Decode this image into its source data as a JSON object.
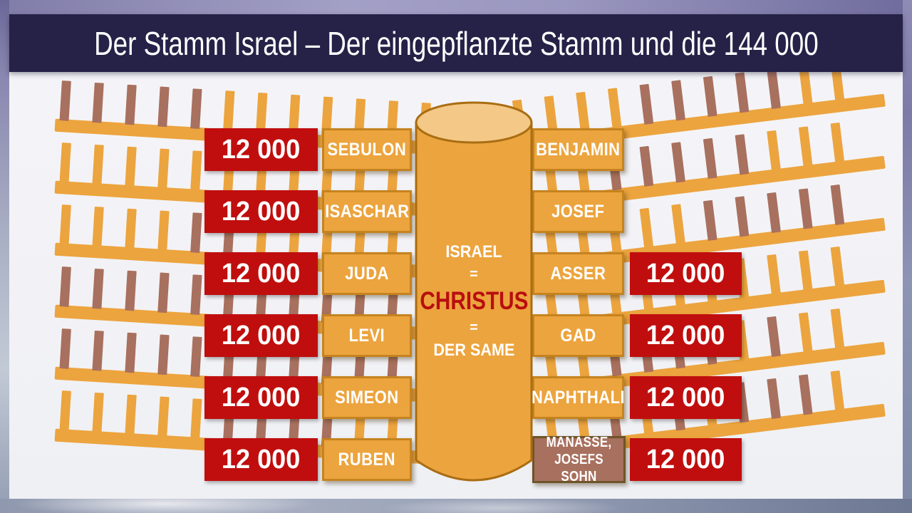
{
  "title": "Der Stamm Israel – Der eingepflanzte Stamm und die 144 000",
  "trunk": {
    "line1": "ISRAEL",
    "eq1": "=",
    "line2": "CHRISTUS",
    "eq2": "=",
    "line3": "DER SAME"
  },
  "rows": [
    {
      "left_count": "12 000",
      "left_name": "SEBULON",
      "right_name": "BENJAMIN",
      "right_count": null
    },
    {
      "left_count": "12 000",
      "left_name": "ISASCHAR",
      "right_name": "JOSEF",
      "right_count": null
    },
    {
      "left_count": "12 000",
      "left_name": "JUDA",
      "right_name": "ASSER",
      "right_count": "12 000"
    },
    {
      "left_count": "12 000",
      "left_name": "LEVI",
      "right_name": "GAD",
      "right_count": "12 000"
    },
    {
      "left_count": "12 000",
      "left_name": "SIMEON",
      "right_name": "NAPHTHALI",
      "right_count": "12 000"
    },
    {
      "left_count": "12 000",
      "left_name": "RUBEN",
      "right_name": [
        "MANASSE,",
        "JOSEFS SOHN"
      ],
      "right_count": "12 000",
      "right_variant": "brown"
    }
  ],
  "colors": {
    "navy": "#252147",
    "red": "#c00e0e",
    "christus_red": "#b80f0f",
    "orange": "#eca43e",
    "orange_border": "#c5831f",
    "orange_light": "#f4c886",
    "trunk_outline": "#a96d12",
    "brown": "#a8705e",
    "brown_border": "#6e5429",
    "background": "#f3f3f6",
    "white": "#ffffff"
  },
  "branches": {
    "left": [
      "bbbbbooooooo",
      "oooooooooooo",
      "oooobboooooo",
      "bbbbbbbbbbbo",
      "bbbbbbbbbbbb",
      "ooooobbbbooo"
    ],
    "right": [
      "ooooobbbbboo",
      "oooobbbbbooo",
      "ooooooobbbbb",
      "oooooooooooo",
      "oooobbbboboo",
      "oooobobobbbo"
    ]
  }
}
